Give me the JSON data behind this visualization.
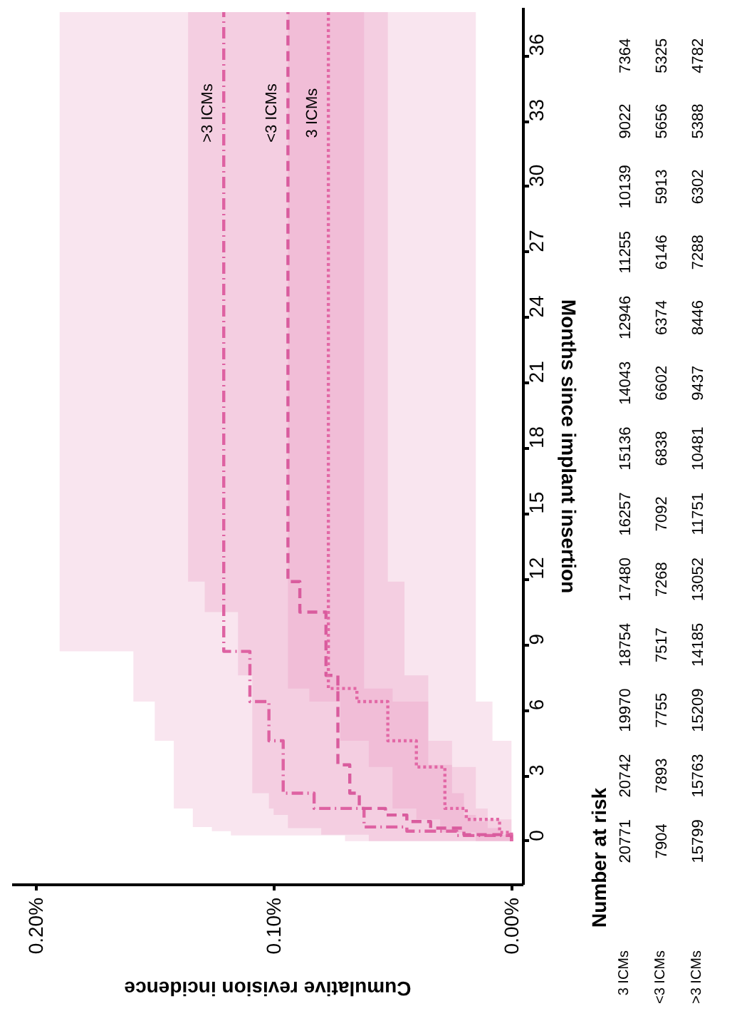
{
  "chart_data": {
    "type": "step",
    "orientation": "horizontal",
    "xlabel": "Cumulative revision incidence",
    "ylabel": "Months since implant insertion",
    "xlim": [
      0.21,
      -0.005
    ],
    "ylim": [
      -2,
      38.2
    ],
    "xticks": [
      {
        "value": 0,
        "label": "0.00%"
      },
      {
        "value": 0.1,
        "label": "0.10%"
      },
      {
        "value": 0.2,
        "label": "0.20%"
      }
    ],
    "yticks": [
      0,
      3,
      6,
      9,
      12,
      15,
      18,
      21,
      24,
      27,
      30,
      33,
      36
    ],
    "grid": false,
    "series": [
      {
        "name": ">3 ICMs",
        "color": "#de62a2",
        "line_style": "dashdot",
        "x": [
          0,
          0.26,
          0.46,
          0.65,
          1.5,
          2.2,
          4.6,
          6.4,
          8.7,
          38
        ],
        "values": [
          0,
          0.023,
          0.044,
          0.062,
          0.083,
          0.096,
          0.102,
          0.11,
          0.121,
          0.121
        ],
        "lower": [
          0,
          0,
          0,
          0,
          0,
          0,
          0.008,
          0.015,
          0.015,
          0.015
        ],
        "upper": [
          0.07,
          0.118,
          0.126,
          0.134,
          0.142,
          0.142,
          0.15,
          0.159,
          0.19,
          0.19
        ]
      },
      {
        "name": "<3 ICMs",
        "color": "#d95c9e",
        "line_style": "dashed",
        "x": [
          0,
          0.3,
          0.6,
          0.9,
          1.2,
          1.5,
          2.2,
          3.5,
          7.6,
          10.5,
          11.9,
          38
        ],
        "values": [
          0,
          0.02,
          0.034,
          0.044,
          0.053,
          0.064,
          0.068,
          0.073,
          0.078,
          0.089,
          0.094,
          0.094
        ],
        "lower": [
          0,
          0.005,
          0.01,
          0.015,
          0.02,
          0.02,
          0.025,
          0.035,
          0.045,
          0.045,
          0.052,
          0.052
        ],
        "upper": [
          0.06,
          0.08,
          0.094,
          0.094,
          0.1,
          0.102,
          0.109,
          0.109,
          0.115,
          0.129,
          0.136,
          0.136
        ]
      },
      {
        "name": "3 ICMs",
        "color": "#e268a6",
        "line_style": "dotted",
        "x": [
          0,
          0.4,
          1.0,
          1.5,
          3.4,
          4.6,
          6.4,
          7.0,
          38
        ],
        "values": [
          0,
          0.005,
          0.019,
          0.028,
          0.04,
          0.052,
          0.065,
          0.077,
          0.077
        ],
        "lower": [
          0,
          0,
          0.01,
          0.015,
          0.025,
          0.035,
          0.05,
          0.062,
          0.062
        ],
        "upper": [
          0.015,
          0.03,
          0.04,
          0.05,
          0.06,
          0.072,
          0.085,
          0.094,
          0.094
        ]
      }
    ],
    "annotations": [
      "Number at risk",
      "3 ICMs",
      "20771",
      "20742",
      "19970",
      "18754",
      "17480",
      "16257",
      "15136",
      "14043",
      "12946",
      "11255",
      "10139",
      "9022",
      "7364",
      "<3 ICMs",
      "7904",
      "7893",
      "7755",
      "7517",
      "7268",
      "7092",
      "6838",
      "6602",
      "6374",
      "6146",
      "5913",
      "5656",
      "5325",
      ">3 ICMs",
      "15799",
      "15763",
      "15209",
      "14185",
      "13052",
      "11751",
      "10481",
      "9437",
      "8446",
      "7288",
      "6302",
      "5388",
      "4782"
    ]
  }
}
